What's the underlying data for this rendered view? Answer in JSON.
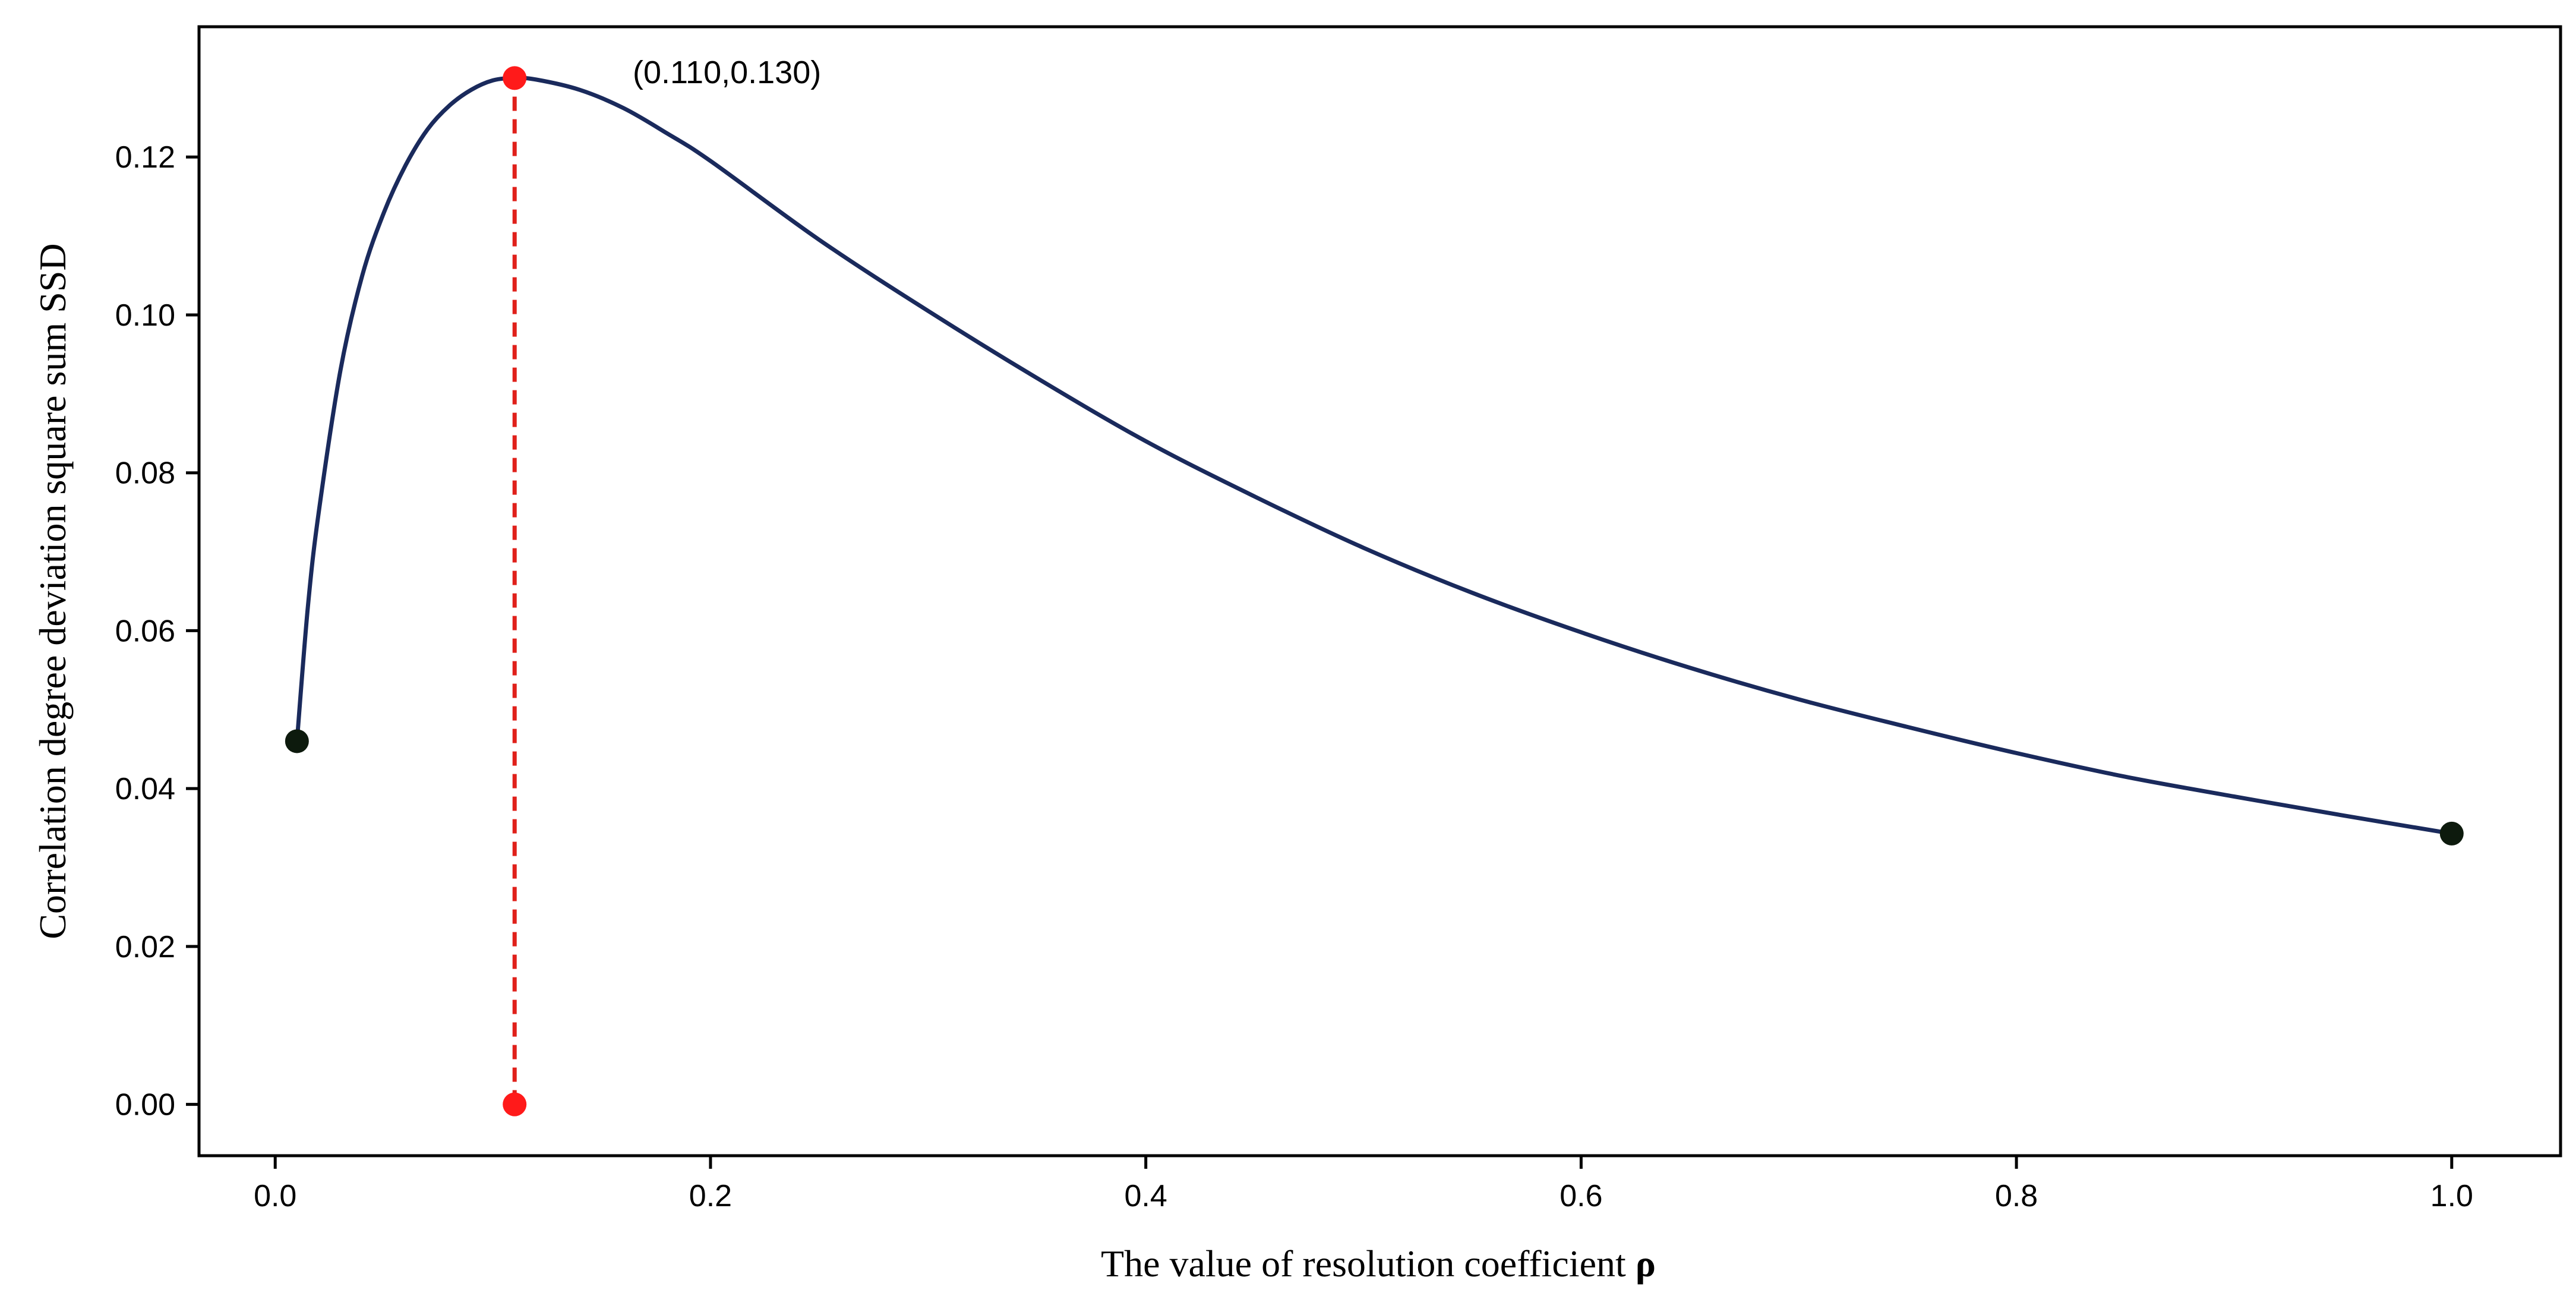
{
  "chart_data": {
    "type": "line",
    "title": "",
    "xlabel": "The value of resolution coefficient",
    "xlabel_symbol": "ρ",
    "ylabel": "Correlation degree deviation square sum SSD",
    "xlim": [
      -0.035,
      1.05
    ],
    "ylim": [
      -0.0065,
      0.1365
    ],
    "grid": false,
    "x_ticks": [
      0.0,
      0.2,
      0.4,
      0.6,
      0.8,
      1.0
    ],
    "x_tick_labels": [
      "0.0",
      "0.2",
      "0.4",
      "0.6",
      "0.8",
      "1.0"
    ],
    "y_ticks": [
      0.0,
      0.02,
      0.04,
      0.06,
      0.08,
      0.1,
      0.12
    ],
    "y_tick_labels": [
      "0.00",
      "0.02",
      "0.04",
      "0.06",
      "0.08",
      "0.10",
      "0.12"
    ],
    "series": [
      {
        "name": "SSD",
        "color": "#1a2a5c",
        "x": [
          0.01,
          0.015,
          0.02,
          0.03,
          0.04,
          0.05,
          0.06,
          0.07,
          0.08,
          0.09,
          0.1,
          0.11,
          0.12,
          0.14,
          0.16,
          0.18,
          0.2,
          0.25,
          0.3,
          0.35,
          0.4,
          0.45,
          0.5,
          0.55,
          0.6,
          0.65,
          0.7,
          0.75,
          0.8,
          0.85,
          0.9,
          0.95,
          1.0
        ],
        "y": [
          0.046,
          0.063,
          0.075,
          0.093,
          0.105,
          0.113,
          0.119,
          0.1235,
          0.1265,
          0.1285,
          0.1297,
          0.13,
          0.1298,
          0.1285,
          0.1262,
          0.123,
          0.1195,
          0.1095,
          0.1005,
          0.092,
          0.084,
          0.077,
          0.0705,
          0.0648,
          0.0598,
          0.0553,
          0.0513,
          0.0478,
          0.0445,
          0.0415,
          0.039,
          0.0366,
          0.0343
        ]
      }
    ],
    "points": [
      {
        "name": "start",
        "x": 0.01,
        "y": 0.046,
        "color": "#0d1a0d"
      },
      {
        "name": "end",
        "x": 1.0,
        "y": 0.0343,
        "color": "#0d1a0d"
      },
      {
        "name": "max",
        "x": 0.11,
        "y": 0.13,
        "color": "#ff1a1a"
      },
      {
        "name": "max-base",
        "x": 0.11,
        "y": 0.0,
        "color": "#ff1a1a"
      }
    ],
    "dropline": {
      "x": 0.11,
      "y_from": 0.0,
      "y_to": 0.13,
      "color": "#e0201a"
    },
    "annotation": {
      "text": "(0.110,0.130)",
      "x": 0.11,
      "y": 0.13
    }
  }
}
